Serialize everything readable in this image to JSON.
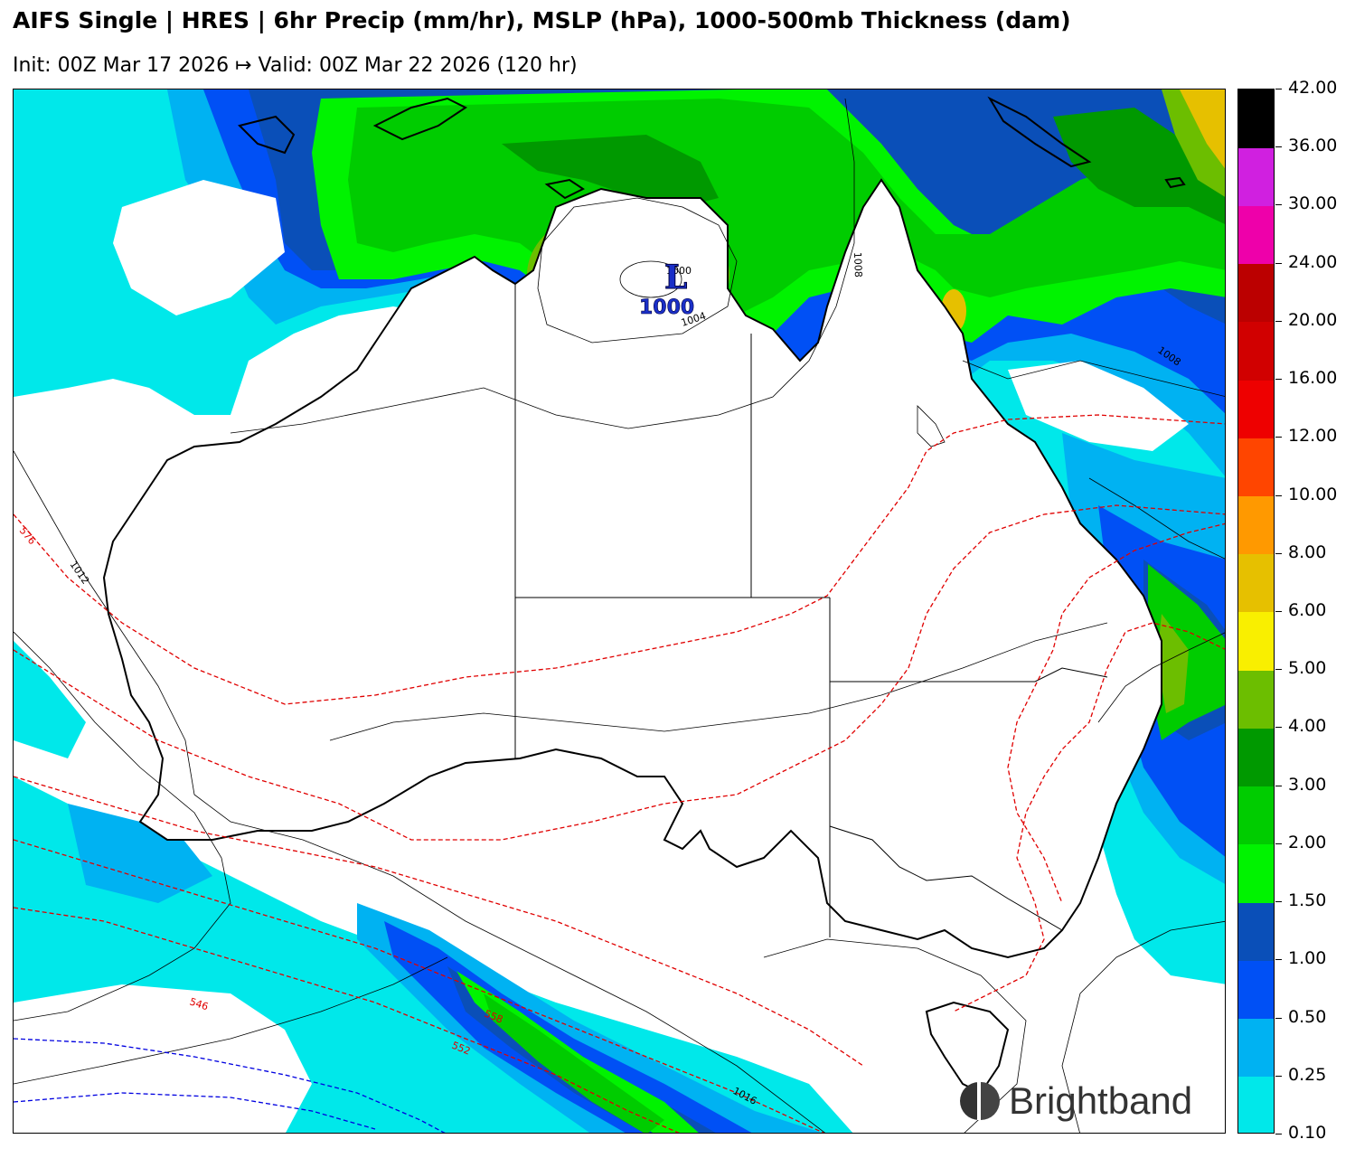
{
  "header": {
    "title": "AIFS Single | HRES | 6hr Precip (mm/hr), MSLP (hPa), 1000-500mb Thickness (dam)",
    "subtitle": "Init: 00Z Mar 17 2026 ↦ Valid: 00Z Mar 22 2026 (120 hr)"
  },
  "colorbar": {
    "levels": [
      "0.10",
      "0.25",
      "0.50",
      "1.00",
      "1.50",
      "2.00",
      "3.00",
      "4.00",
      "5.00",
      "6.00",
      "8.00",
      "10.00",
      "12.00",
      "16.00",
      "20.00",
      "24.00",
      "30.00",
      "36.00",
      "42.00"
    ],
    "colors": [
      "#00e8ea",
      "#00b2f2",
      "#0050f5",
      "#0a4fb8",
      "#00f300",
      "#00cc00",
      "#009900",
      "#6cbe00",
      "#f9ef00",
      "#e6c000",
      "#ff9900",
      "#ff4500",
      "#ee0000",
      "#d10000",
      "#bb0000",
      "#ee00aa",
      "#d020e0",
      "#000000"
    ]
  },
  "map": {
    "low_center": {
      "symbol": "L",
      "pressure": "1000"
    },
    "isobar_labels": [
      "1000",
      "1004",
      "1008",
      "1008",
      "1012",
      "1016"
    ],
    "thickness_labels": [
      "576",
      "546",
      "552",
      "558"
    ]
  },
  "brand": {
    "name": "Brightband"
  }
}
